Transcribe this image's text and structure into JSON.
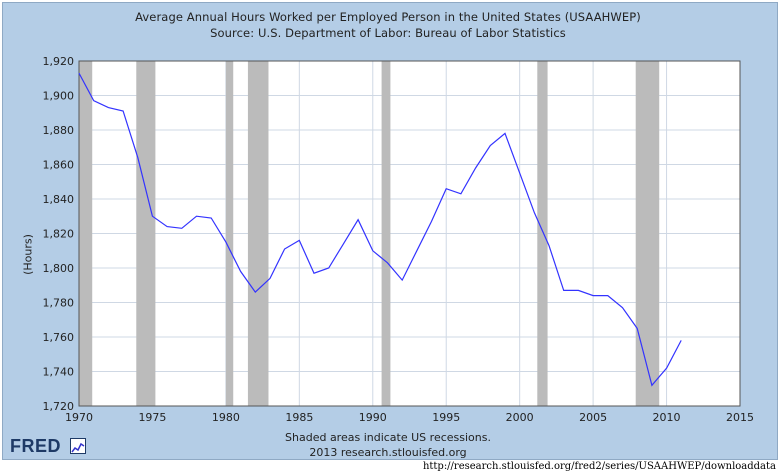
{
  "header": {
    "title": "Average Annual Hours Worked per Employed Person in the United States (USAAHWEP)",
    "subtitle": "Source: U.S. Department of Labor: Bureau of Labor Statistics"
  },
  "footer": {
    "note": "Shaded areas indicate US recessions.",
    "credit": "2013 research.stlouisfed.org",
    "logo_text": "FRED",
    "url": "http://research.stlouisfed.org/fred2/series/USAAHWEP/downloaddata"
  },
  "colors": {
    "frame_bg": "#b4cde6",
    "plot_bg": "#ffffff",
    "line": "#3333ff",
    "recession": "#bbbbbb",
    "grid": "#cfd8e4"
  },
  "chart_data": {
    "type": "line",
    "title": "Average Annual Hours Worked per Employed Person in the United States (USAAHWEP)",
    "subtitle": "Source: U.S. Department of Labor: Bureau of Labor Statistics",
    "xlabel": "",
    "ylabel": "(Hours)",
    "xlim": [
      1970,
      2015
    ],
    "ylim": [
      1720,
      1920
    ],
    "x_ticks": [
      1970,
      1975,
      1980,
      1985,
      1990,
      1995,
      2000,
      2005,
      2010,
      2015
    ],
    "y_ticks": [
      1720,
      1740,
      1760,
      1780,
      1800,
      1820,
      1840,
      1860,
      1880,
      1900,
      1920
    ],
    "y_tick_labels": [
      "1,720",
      "1,740",
      "1,760",
      "1,780",
      "1,800",
      "1,820",
      "1,840",
      "1,860",
      "1,880",
      "1,900",
      "1,920"
    ],
    "grid": true,
    "recessions": [
      [
        1970.0,
        1970.9
      ],
      [
        1973.9,
        1975.2
      ],
      [
        1980.0,
        1980.5
      ],
      [
        1981.5,
        1982.9
      ],
      [
        1990.6,
        1991.2
      ],
      [
        2001.2,
        2001.9
      ],
      [
        2007.9,
        2009.5
      ]
    ],
    "series": [
      {
        "x": [
          1970,
          1971,
          1972,
          1973,
          1974,
          1975,
          1976,
          1977,
          1978,
          1979,
          1980,
          1981,
          1982,
          1983,
          1984,
          1985,
          1986,
          1987,
          1988,
          1989,
          1990,
          1991,
          1992,
          1993,
          1994,
          1995,
          1996,
          1997,
          1998,
          1999,
          2000,
          2001,
          2002,
          2003,
          2004,
          2005,
          2006,
          2007,
          2008,
          2009,
          2010,
          2011
        ],
        "values": [
          1913,
          1897,
          1893,
          1891,
          1864,
          1830,
          1824,
          1823,
          1830,
          1829,
          1815,
          1798,
          1786,
          1794,
          1811,
          1816,
          1797,
          1800,
          1814,
          1828,
          1810,
          1803,
          1793,
          1810,
          1827,
          1846,
          1843,
          1858,
          1871,
          1878,
          1855,
          1832,
          1813,
          1787,
          1787,
          1784,
          1784,
          1777,
          1765,
          1732,
          1742,
          1758
        ]
      }
    ]
  }
}
